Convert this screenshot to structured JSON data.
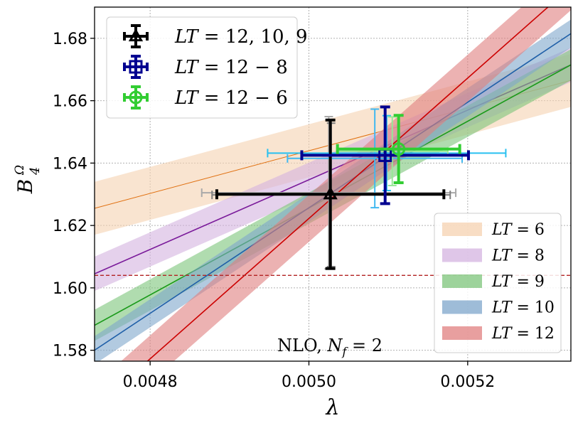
{
  "chart_data": {
    "type": "scatter",
    "xlabel": "λ",
    "ylabel": "B4 Ω",
    "ylabel_main": "B",
    "ylabel_sub": "4",
    "ylabel_sup": "Ω",
    "xlim": [
      0.00473,
      0.00533
    ],
    "ylim": [
      1.5765,
      1.69
    ],
    "xticks": [
      "0.0048",
      "0.0050",
      "0.0052"
    ],
    "xtick_values": [
      0.0048,
      0.005,
      0.0052
    ],
    "yticks": [
      "1.58",
      "1.60",
      "1.62",
      "1.64",
      "1.66",
      "1.68"
    ],
    "ytick_values": [
      1.58,
      1.6,
      1.62,
      1.64,
      1.66,
      1.68
    ],
    "grid": true,
    "annotation": "NLO,  N_f = 2",
    "annotation_parts": {
      "text": "NLO,",
      "var": "N",
      "sub": "f",
      "eq": " = 2"
    },
    "reference_line": {
      "y": 1.604,
      "color": "#b22222",
      "style": "dashed"
    },
    "bands": [
      {
        "name": "LT = 6",
        "color": "#f5d2b0",
        "line_color": "#e07010",
        "x": [
          0.00473,
          0.00533
        ],
        "center": [
          1.6255,
          1.6665
        ],
        "half_width": [
          0.0085,
          0.0085
        ]
      },
      {
        "name": "LT = 8",
        "color": "#d4b3e0",
        "line_color": "#7a1a9a",
        "x": [
          0.00473,
          0.00533
        ],
        "center": [
          1.6045,
          1.6715
        ],
        "half_width": [
          0.0055,
          0.0055
        ]
      },
      {
        "name": "LT = 9",
        "color": "#7cc47a",
        "line_color": "#1a9a1a",
        "x": [
          0.00473,
          0.00533
        ],
        "center": [
          1.588,
          1.6715
        ],
        "half_width": [
          0.005,
          0.005
        ]
      },
      {
        "name": "LT = 10",
        "color": "#7ea6cb",
        "line_color": "#1f5fa8",
        "x": [
          0.00473,
          0.00533
        ],
        "center": [
          1.58,
          1.6815
        ],
        "half_width": [
          0.0045,
          0.0045
        ]
      },
      {
        "name": "LT = 12",
        "color": "#e07f7f",
        "line_color": "#cc0000",
        "x": [
          0.00473,
          0.00533
        ],
        "center": [
          1.5615,
          1.6965
        ],
        "half_width": [
          0.0075,
          0.0075
        ]
      }
    ],
    "series": [
      {
        "name": "LT = 12, 10, 9",
        "marker": "triangle",
        "color": "#000000",
        "points": [
          {
            "x": 0.005027,
            "y": 1.63,
            "xerr": 0.000143,
            "yerr": 0.0238
          }
        ],
        "ghosts": [
          {
            "x": 0.005025,
            "y": 1.6305,
            "xerr": 0.00016,
            "yerr": 0.0244,
            "color": "#a9a9a9"
          },
          {
            "x": 0.005028,
            "y": 1.6298,
            "xerr": 0.00015,
            "yerr": 0.023,
            "color": "#7f7f7f"
          }
        ]
      },
      {
        "name": "LT = 12 − 8",
        "marker": "square",
        "color": "#000090",
        "points": [
          {
            "x": 0.005096,
            "y": 1.6425,
            "xerr": 0.000105,
            "yerr": 0.0155
          }
        ],
        "ghosts": [
          {
            "x": 0.005083,
            "y": 1.6415,
            "xerr": 0.00011,
            "yerr": 0.0158,
            "color": "#40b8f0"
          },
          {
            "x": 0.005098,
            "y": 1.6432,
            "xerr": 0.00015,
            "yerr": 0.012,
            "color": "#28c0f0"
          }
        ]
      },
      {
        "name": "LT = 12 − 6",
        "marker": "circle-plus",
        "color": "#32cd32",
        "points": [
          {
            "x": 0.005113,
            "y": 1.6445,
            "xerr": 7.7e-05,
            "yerr": 0.0108
          }
        ],
        "ghosts": [
          {
            "x": 0.005105,
            "y": 1.6438,
            "xerr": 7e-05,
            "yerr": 0.011,
            "color": "#98e898"
          }
        ]
      }
    ],
    "legend_upper": {
      "placement": "top-left",
      "entries": [
        {
          "label": "LT = 12, 10, 9",
          "label_parts": [
            "LT",
            " = 12, 10, 9"
          ]
        },
        {
          "label": "LT = 12 − 8",
          "label_parts": [
            "LT",
            " = 12 − 8"
          ]
        },
        {
          "label": "LT = 12 − 6",
          "label_parts": [
            "LT",
            " = 12 − 6"
          ]
        }
      ]
    },
    "legend_lower": {
      "placement": "bottom-right",
      "entries": [
        {
          "label": "LT = 6",
          "label_parts": [
            "LT",
            " = 6"
          ]
        },
        {
          "label": "LT = 8",
          "label_parts": [
            "LT",
            " = 8"
          ]
        },
        {
          "label": "LT = 9",
          "label_parts": [
            "LT",
            " = 9"
          ]
        },
        {
          "label": "LT = 10",
          "label_parts": [
            "LT",
            " = 10"
          ]
        },
        {
          "label": "LT = 12",
          "label_parts": [
            "LT",
            " = 12"
          ]
        }
      ]
    }
  }
}
